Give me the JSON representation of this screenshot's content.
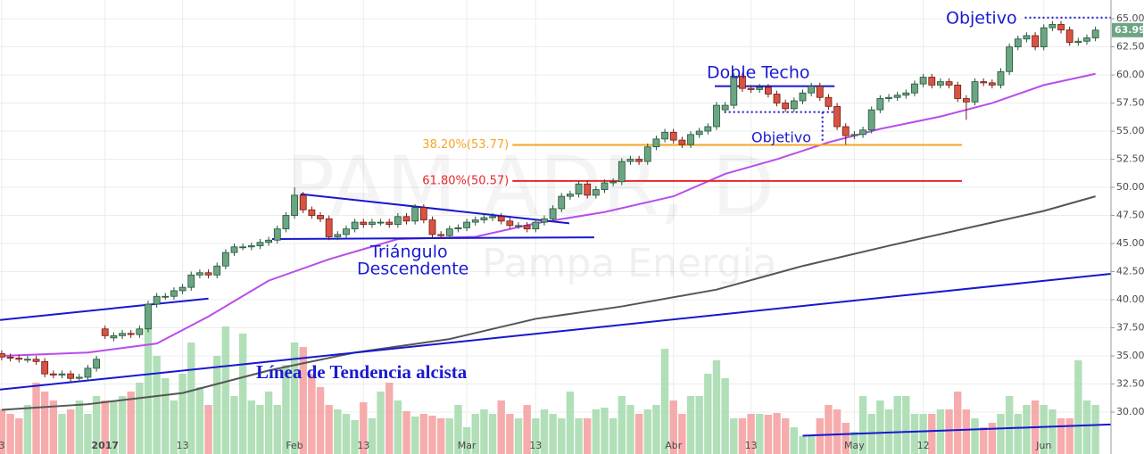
{
  "chart_data": {
    "type": "candlestick",
    "watermark": [
      "PAM ADR, D",
      "Pampa Energia"
    ],
    "annotations": [
      "Objetivo",
      "Doble Techo",
      "Objetivo",
      "Triángulo",
      "Descendente",
      "Línea de Tendencia alcista"
    ],
    "xlim": [
      -0.2,
      128.8
    ],
    "xticks": [
      {
        "value": 0,
        "label": "3"
      },
      {
        "value": 12,
        "label": "2017"
      },
      {
        "value": 21,
        "label": "13"
      },
      {
        "value": 34,
        "label": "Feb"
      },
      {
        "value": 42,
        "label": "13"
      },
      {
        "value": 54,
        "label": "Mar"
      },
      {
        "value": 62,
        "label": "13"
      },
      {
        "value": 78,
        "label": "Abr"
      },
      {
        "value": 87,
        "label": "13"
      },
      {
        "value": 99,
        "label": "May"
      },
      {
        "value": 107,
        "label": "12"
      },
      {
        "value": 121,
        "label": "Jun"
      }
    ],
    "ylim": [
      26.27,
      66.67
    ],
    "yticks": [
      {
        "value": 30,
        "label": "30.00"
      },
      {
        "value": 32.5,
        "label": "32.50"
      },
      {
        "value": 35,
        "label": "35.00"
      },
      {
        "value": 37.5,
        "label": "37.50"
      },
      {
        "value": 40,
        "label": "40.00"
      },
      {
        "value": 42.5,
        "label": "42.50"
      },
      {
        "value": 45,
        "label": "45.00"
      },
      {
        "value": 47.5,
        "label": "47.50"
      },
      {
        "value": 50,
        "label": "50.00"
      },
      {
        "value": 52.5,
        "label": "52.50"
      },
      {
        "value": 55,
        "label": "55.00"
      },
      {
        "value": 57.5,
        "label": "57.50"
      },
      {
        "value": 60,
        "label": "60.00"
      },
      {
        "value": 62.5,
        "label": "62.50"
      },
      {
        "value": 65,
        "label": "65.00"
      }
    ],
    "grid": true,
    "up_color": "#6ba583",
    "down_color": "#d75442",
    "volume_up_color": "#a9dcb0",
    "volume_down_color": "#f5a3a3",
    "open": [
      35.2,
      34.9,
      34.8,
      34.7,
      34.7,
      34.5,
      33.4,
      33.3,
      33.4,
      33.0,
      33.1,
      33.9,
      37.4,
      36.6,
      36.8,
      37.0,
      36.9,
      37.4,
      39.6,
      40.3,
      40.3,
      40.8,
      41.1,
      42.2,
      42.4,
      42.2,
      43.0,
      44.2,
      44.7,
      44.7,
      44.8,
      45.1,
      45.3,
      46.3,
      47.5,
      49.3,
      48.0,
      47.5,
      47.2,
      45.6,
      45.8,
      46.3,
      46.9,
      46.7,
      46.9,
      46.9,
      46.7,
      47.4,
      47.0,
      48.2,
      47.1,
      45.8,
      45.7,
      46.3,
      46.4,
      46.9,
      47.1,
      47.3,
      47.4,
      47.0,
      46.6,
      46.6,
      46.3,
      46.9,
      47.2,
      48.1,
      49.2,
      49.4,
      50.3,
      49.3,
      49.8,
      50.4,
      50.5,
      52.3,
      52.5,
      52.3,
      53.6,
      54.3,
      54.9,
      54.2,
      53.8,
      54.7,
      55.0,
      55.4,
      56.9,
      57.3,
      59.9,
      58.8,
      58.7,
      58.9,
      58.3,
      57.5,
      57.0,
      57.7,
      58.4,
      59.0,
      58.0,
      57.2,
      55.4,
      54.6,
      54.7,
      55.1,
      56.9,
      57.9,
      58.0,
      58.2,
      58.4,
      59.2,
      59.8,
      59.1,
      59.4,
      59.1,
      57.9,
      57.6,
      59.4,
      59.3,
      59.1,
      60.3,
      62.5,
      63.2,
      63.5,
      62.5,
      64.2,
      64.5,
      64.0,
      62.9,
      63.0,
      63.3
    ],
    "high": [
      35.5,
      35.2,
      35.1,
      35.0,
      35.0,
      34.8,
      33.7,
      33.7,
      33.7,
      33.4,
      34.2,
      35.0,
      37.7,
      37.1,
      37.3,
      37.3,
      37.7,
      39.9,
      40.6,
      40.6,
      41.1,
      41.4,
      42.5,
      42.7,
      42.7,
      43.3,
      44.5,
      45.0,
      45.0,
      45.1,
      45.4,
      45.6,
      46.6,
      47.8,
      50.0,
      49.6,
      48.3,
      47.8,
      47.5,
      46.1,
      46.6,
      47.2,
      47.2,
      47.2,
      47.2,
      47.2,
      47.7,
      47.7,
      48.5,
      48.5,
      47.4,
      46.1,
      46.6,
      46.7,
      47.2,
      47.4,
      47.6,
      47.7,
      47.7,
      47.3,
      46.9,
      46.9,
      47.2,
      47.5,
      48.4,
      49.5,
      49.7,
      50.6,
      50.6,
      50.1,
      50.7,
      50.8,
      52.6,
      52.8,
      52.8,
      53.9,
      54.6,
      55.2,
      55.2,
      54.5,
      55.0,
      55.3,
      55.7,
      57.6,
      57.6,
      60.2,
      60.2,
      59.1,
      59.2,
      59.2,
      58.6,
      57.8,
      58.0,
      58.7,
      59.3,
      59.3,
      58.3,
      57.5,
      55.7,
      55.0,
      55.4,
      57.2,
      58.2,
      58.3,
      58.5,
      58.7,
      59.5,
      60.1,
      60.1,
      59.7,
      59.7,
      59.4,
      58.2,
      59.7,
      59.7,
      59.6,
      60.6,
      62.8,
      63.5,
      63.8,
      63.8,
      64.5,
      64.8,
      64.8,
      64.3,
      63.3,
      63.6,
      64.3
    ],
    "low": [
      34.6,
      34.5,
      34.4,
      34.4,
      34.2,
      33.1,
      33.0,
      33.0,
      32.7,
      32.7,
      32.8,
      33.6,
      36.5,
      36.3,
      36.5,
      36.6,
      36.6,
      37.1,
      39.3,
      40.0,
      40.0,
      40.5,
      40.8,
      41.9,
      41.9,
      41.9,
      42.7,
      43.9,
      44.4,
      44.4,
      44.5,
      44.8,
      45.0,
      46.0,
      47.2,
      47.7,
      47.2,
      46.9,
      45.3,
      45.3,
      45.5,
      46.0,
      46.4,
      46.4,
      46.6,
      46.4,
      46.4,
      46.7,
      46.7,
      46.8,
      45.5,
      45.4,
      45.4,
      46.0,
      46.1,
      46.6,
      46.8,
      47.0,
      46.7,
      46.3,
      46.3,
      46.0,
      46.0,
      46.6,
      46.9,
      47.8,
      48.9,
      49.1,
      49.0,
      49.0,
      49.5,
      50.1,
      50.2,
      52.0,
      52.0,
      52.0,
      53.3,
      54.0,
      53.9,
      53.5,
      53.5,
      54.4,
      54.7,
      55.1,
      56.6,
      57.0,
      58.5,
      58.4,
      58.4,
      58.0,
      57.2,
      56.7,
      56.7,
      57.4,
      58.1,
      57.7,
      56.9,
      55.1,
      53.8,
      54.3,
      54.4,
      54.8,
      56.6,
      57.6,
      57.7,
      57.9,
      58.1,
      58.9,
      58.8,
      58.8,
      58.8,
      57.6,
      56.0,
      57.3,
      59.0,
      58.8,
      58.8,
      60.0,
      62.2,
      62.9,
      62.2,
      62.2,
      63.9,
      63.7,
      62.6,
      62.6,
      62.7,
      63.0
    ],
    "close": [
      34.9,
      34.8,
      34.7,
      34.7,
      34.5,
      33.4,
      33.3,
      33.4,
      33.0,
      33.1,
      33.9,
      34.7,
      36.8,
      36.8,
      37.0,
      36.9,
      37.4,
      39.6,
      40.3,
      40.3,
      40.8,
      41.1,
      42.2,
      42.4,
      42.2,
      43.0,
      44.2,
      44.7,
      44.7,
      44.8,
      45.1,
      45.3,
      46.3,
      47.5,
      49.3,
      48.0,
      47.5,
      47.2,
      45.6,
      45.8,
      46.3,
      46.9,
      46.7,
      46.9,
      46.9,
      46.7,
      47.4,
      47.0,
      48.2,
      47.1,
      45.8,
      45.7,
      46.3,
      46.4,
      46.9,
      47.1,
      47.3,
      47.4,
      47.0,
      46.6,
      46.6,
      46.3,
      46.9,
      47.2,
      48.1,
      49.2,
      49.4,
      50.3,
      49.3,
      49.8,
      50.4,
      50.5,
      52.3,
      52.5,
      52.3,
      53.6,
      54.3,
      54.9,
      54.2,
      53.8,
      54.7,
      55.0,
      55.4,
      57.3,
      57.3,
      59.9,
      58.8,
      58.7,
      58.9,
      58.3,
      57.5,
      57.0,
      57.7,
      58.4,
      59.0,
      58.0,
      57.2,
      55.4,
      54.6,
      54.7,
      55.1,
      56.9,
      57.9,
      58.0,
      58.2,
      58.4,
      59.2,
      59.8,
      59.1,
      59.4,
      59.1,
      57.9,
      57.6,
      59.4,
      59.3,
      59.1,
      60.3,
      62.5,
      63.2,
      63.5,
      62.5,
      64.2,
      64.5,
      64.0,
      62.9,
      63.0,
      63.3,
      63.99
    ],
    "volume_lim": [
      0,
      509
    ],
    "volume": [
      50,
      45,
      40,
      55,
      80,
      70,
      60,
      45,
      50,
      60,
      45,
      65,
      60,
      60,
      65,
      70,
      80,
      140,
      110,
      85,
      60,
      90,
      125,
      75,
      55,
      110,
      143,
      65,
      135,
      60,
      55,
      70,
      55,
      100,
      125,
      120,
      90,
      75,
      55,
      50,
      45,
      38,
      58,
      40,
      70,
      80,
      60,
      48,
      42,
      45,
      43,
      40,
      40,
      55,
      30,
      45,
      50,
      45,
      60,
      45,
      40,
      55,
      40,
      50,
      45,
      40,
      70,
      40,
      40,
      50,
      52,
      40,
      65,
      55,
      45,
      50,
      55,
      118,
      60,
      45,
      65,
      65,
      90,
      105,
      85,
      40,
      40,
      45,
      45,
      44,
      46,
      40,
      30,
      20,
      20,
      40,
      55,
      50,
      35,
      25,
      65,
      45,
      60,
      50,
      65,
      65,
      45,
      45,
      45,
      50,
      50,
      70,
      50,
      40,
      30,
      35,
      45,
      65,
      45,
      55,
      60,
      55,
      50,
      40,
      40,
      105,
      60,
      55
    ],
    "moving_averages": [
      {
        "color": "#b84dea",
        "x": [
          0,
          10,
          18,
          24,
          31,
          38,
          46,
          55,
          62,
          70,
          78,
          84,
          90,
          96,
          102,
          109,
          115,
          121,
          127
        ],
        "values": [
          35.0,
          35.3,
          36.1,
          38.5,
          41.7,
          43.6,
          45.4,
          45.6,
          46.8,
          47.8,
          49.2,
          51.2,
          52.5,
          54.0,
          55.2,
          56.3,
          57.5,
          59.1,
          60.1
        ]
      },
      {
        "color": "#555555",
        "x": [
          0,
          10,
          21,
          31,
          41,
          52,
          62,
          72,
          83,
          93,
          103,
          114,
          121,
          127
        ],
        "values": [
          30.2,
          30.7,
          31.7,
          33.7,
          35.3,
          36.5,
          38.3,
          39.4,
          40.9,
          43.0,
          44.8,
          46.7,
          47.9,
          49.2
        ]
      }
    ],
    "trendlines": [
      {
        "x": [
          -0.2,
          24
        ],
        "y": [
          38.2,
          40.1
        ],
        "color": "#1717cf",
        "dotted": false
      },
      {
        "x": [
          -0.2,
          128.8
        ],
        "y": [
          32.0,
          42.3
        ],
        "color": "#1717cf",
        "dotted": false
      },
      {
        "x": [
          93,
          128.8
        ],
        "y": [
          27.9,
          28.9
        ],
        "color": "#1717cf",
        "dotted": false
      },
      {
        "x": [
          34.7,
          65.9
        ],
        "y": [
          49.4,
          46.8
        ],
        "color": "#1717cf",
        "dotted": false
      },
      {
        "x": [
          31.4,
          68.8
        ],
        "y": [
          45.4,
          45.55
        ],
        "color": "#1717cf",
        "dotted": false
      },
      {
        "x": [
          82.8,
          96.7
        ],
        "y": [
          59.0,
          59.0
        ],
        "color": "#1717cf",
        "dotted": false
      },
      {
        "x": [
          83.9,
          96.7
        ],
        "y": [
          56.7,
          56.7
        ],
        "color": "#1717cf",
        "dotted": true
      },
      {
        "x": [
          95.3,
          95.3
        ],
        "y": [
          56.7,
          54.0
        ],
        "color": "#1717cf",
        "dotted": true
      },
      {
        "x": [
          118.8,
          128.8
        ],
        "y": [
          65.1,
          65.1
        ],
        "color": "#1717cf",
        "dotted": true
      }
    ],
    "fibonacci": [
      {
        "label": "38.20%(53.77)",
        "value": 53.77,
        "color": "#f5a623",
        "x": [
          59.3,
          111.5
        ]
      },
      {
        "label": "61.80%(50.57)",
        "value": 50.57,
        "color": "#e8262b",
        "x": [
          59.3,
          111.5
        ]
      }
    ]
  }
}
